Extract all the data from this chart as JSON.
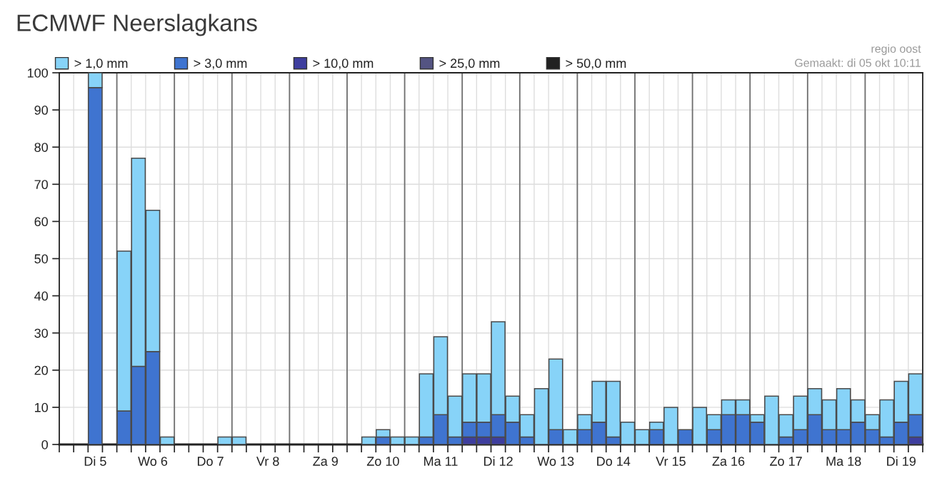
{
  "chart_data": {
    "type": "bar",
    "title": "ECMWF Neerslagkans",
    "annotations": [
      "regio oost",
      "Gemaakt: di 05 okt 10:11"
    ],
    "stacked": true,
    "categories": [
      null,
      null,
      "Di 5",
      null,
      null,
      null,
      "Wo 6",
      null,
      null,
      null,
      "Do 7",
      null,
      null,
      null,
      "Vr 8",
      null,
      null,
      null,
      "Za 9",
      null,
      null,
      null,
      "Zo 10",
      null,
      null,
      null,
      "Ma 11",
      null,
      null,
      null,
      "Di 12",
      null,
      null,
      null,
      "Wo 13",
      null,
      null,
      null,
      "Do 14",
      null,
      null,
      null,
      "Vr 15",
      null,
      null,
      null,
      "Za 16",
      null,
      null,
      null,
      "Zo 17",
      null,
      null,
      null,
      "Ma 18",
      null,
      null,
      null,
      "Di 19",
      null
    ],
    "series": [
      {
        "name": "> 50,0 mm",
        "color": "#222222",
        "values": [
          null,
          null,
          null,
          null,
          null,
          null,
          null,
          null,
          null,
          null,
          null,
          null,
          null,
          null,
          null,
          null,
          null,
          null,
          null,
          null,
          null,
          null,
          null,
          null,
          null,
          null,
          null,
          null,
          null,
          null,
          null,
          null,
          null,
          null,
          null,
          null,
          null,
          null,
          null,
          null,
          null,
          null,
          null,
          null,
          null,
          null,
          null,
          null,
          null,
          null,
          null,
          null,
          null,
          null,
          null,
          null,
          null,
          null,
          null,
          null
        ]
      },
      {
        "name": "> 25,0 mm",
        "color": "#545482",
        "values": [
          null,
          null,
          null,
          null,
          null,
          null,
          null,
          null,
          null,
          null,
          null,
          null,
          null,
          null,
          null,
          null,
          null,
          null,
          null,
          null,
          null,
          null,
          null,
          null,
          null,
          null,
          null,
          null,
          null,
          null,
          null,
          null,
          null,
          null,
          null,
          null,
          null,
          null,
          null,
          null,
          null,
          null,
          null,
          null,
          null,
          null,
          null,
          null,
          null,
          null,
          null,
          null,
          null,
          null,
          null,
          null,
          null,
          null,
          null,
          null
        ]
      },
      {
        "name": "> 10,0 mm",
        "color": "#3e3e9e",
        "values": [
          null,
          null,
          null,
          null,
          null,
          null,
          null,
          null,
          null,
          null,
          null,
          null,
          null,
          null,
          null,
          null,
          null,
          null,
          null,
          null,
          null,
          null,
          null,
          null,
          null,
          null,
          null,
          null,
          2,
          2,
          2,
          null,
          null,
          null,
          null,
          null,
          null,
          null,
          null,
          null,
          null,
          null,
          null,
          null,
          null,
          null,
          null,
          null,
          null,
          null,
          null,
          null,
          null,
          null,
          null,
          null,
          null,
          null,
          null,
          2
        ]
      },
      {
        "name": "> 3,0 mm",
        "color": "#3f74d0",
        "values": [
          null,
          null,
          96,
          null,
          9,
          21,
          25,
          null,
          null,
          null,
          null,
          null,
          null,
          null,
          null,
          null,
          null,
          null,
          null,
          null,
          null,
          null,
          2,
          null,
          null,
          2,
          8,
          2,
          4,
          4,
          6,
          6,
          2,
          null,
          4,
          null,
          4,
          6,
          2,
          null,
          null,
          4,
          null,
          4,
          null,
          4,
          8,
          8,
          6,
          null,
          2,
          4,
          8,
          4,
          4,
          6,
          4,
          2,
          6,
          6
        ]
      },
      {
        "name": "> 1,0 mm",
        "color": "#87d3f8",
        "values": [
          null,
          null,
          4,
          null,
          43,
          56,
          38,
          2,
          null,
          null,
          null,
          2,
          2,
          null,
          null,
          null,
          null,
          null,
          null,
          null,
          null,
          2,
          2,
          2,
          2,
          17,
          21,
          11,
          13,
          13,
          25,
          7,
          6,
          15,
          19,
          4,
          4,
          11,
          15,
          6,
          4,
          2,
          10,
          null,
          10,
          4,
          4,
          4,
          2,
          13,
          6,
          9,
          7,
          8,
          11,
          6,
          4,
          10,
          11,
          11
        ]
      }
    ],
    "ylim": [
      0,
      100
    ],
    "yticks": [
      0,
      10,
      20,
      30,
      40,
      50,
      60,
      70,
      80,
      90,
      100
    ],
    "grid": true,
    "legend": "top left"
  }
}
